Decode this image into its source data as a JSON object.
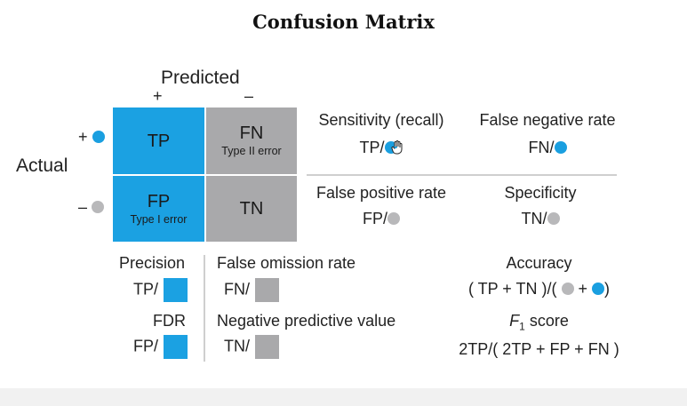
{
  "title": "Confusion Matrix",
  "axes": {
    "predicted": "Predicted",
    "actual": "Actual",
    "plus": "+",
    "minus": "–"
  },
  "cells": {
    "tp": {
      "label": "TP",
      "sub": ""
    },
    "fn": {
      "label": "FN",
      "sub": "Type II error"
    },
    "fp": {
      "label": "FP",
      "sub": "Type I error"
    },
    "tn": {
      "label": "TN",
      "sub": ""
    }
  },
  "rates": {
    "sensitivity": {
      "name": "Sensitivity (recall)",
      "formula": "TP/"
    },
    "fnr": {
      "name": "False negative rate",
      "formula": "FN/"
    },
    "fpr": {
      "name": "False positive rate",
      "formula": "FP/"
    },
    "specificity": {
      "name": "Specificity",
      "formula": "TN/"
    },
    "precision": {
      "name": "Precision",
      "formula": "TP/"
    },
    "fdr": {
      "name": "FDR",
      "formula": "FP/"
    },
    "for": {
      "name": "False omission rate",
      "formula": "FN/"
    },
    "npv": {
      "name": "Negative predictive value",
      "formula": "TN/"
    },
    "accuracy": {
      "name": "Accuracy",
      "formula_left": "( TP + TN )/(",
      "formula_plus": "+",
      "formula_right": ")"
    },
    "f1": {
      "name_f": "F",
      "name_sub": "1",
      "name_rest": " score",
      "formula": "2TP/( 2TP + FP + FN )"
    }
  },
  "colors": {
    "positive": "#1ba1e2",
    "negative": "#a9a9ab"
  },
  "icons": {
    "cursor": "hand-pointer-icon"
  }
}
